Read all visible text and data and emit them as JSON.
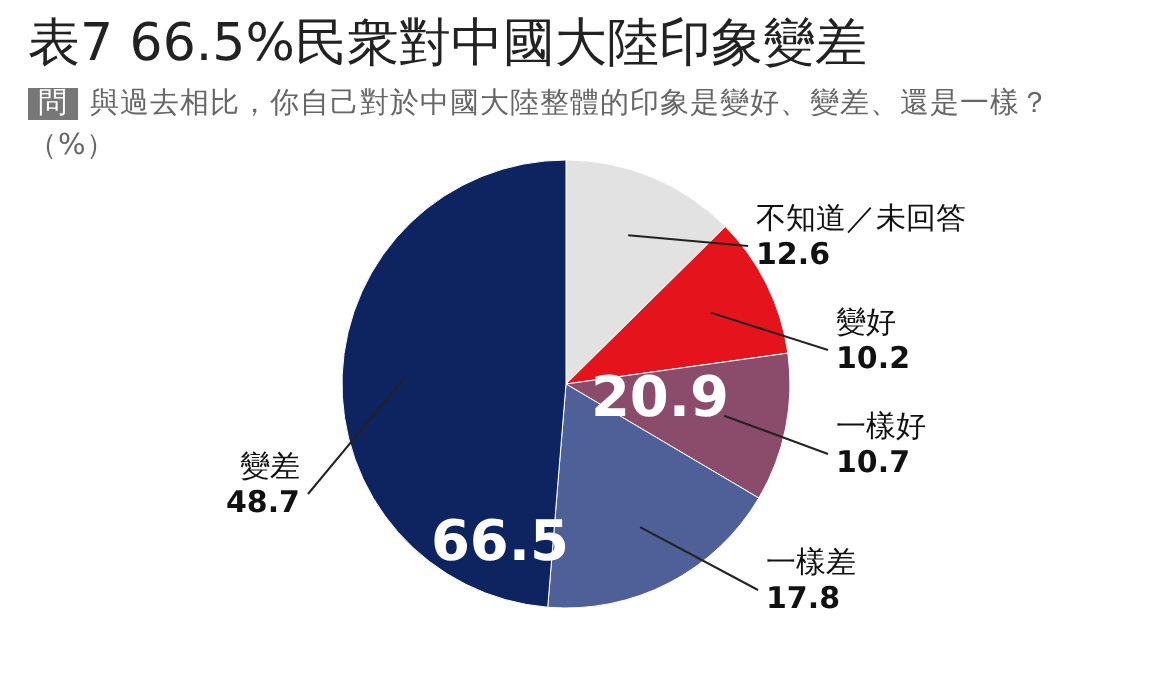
{
  "chart_data": {
    "type": "pie",
    "title": "表7 66.5%民衆對中國大陸印象變差",
    "subtitle": "與過去相比，你自己對於中國大陸整體的印象是變好、變差、還是一樣？（%）",
    "categories": [
      "不知道／未回答",
      "變好",
      "一樣好",
      "一樣差",
      "變差"
    ],
    "values": [
      12.6,
      10.2,
      10.7,
      17.8,
      48.7
    ],
    "colors": [
      "#e2e2e2",
      "#e5141c",
      "#8b4b6a",
      "#4f5f97",
      "#0e2460"
    ],
    "data_labels": true,
    "annotations": [
      "問",
      "20.9",
      "66.5"
    ]
  }
}
